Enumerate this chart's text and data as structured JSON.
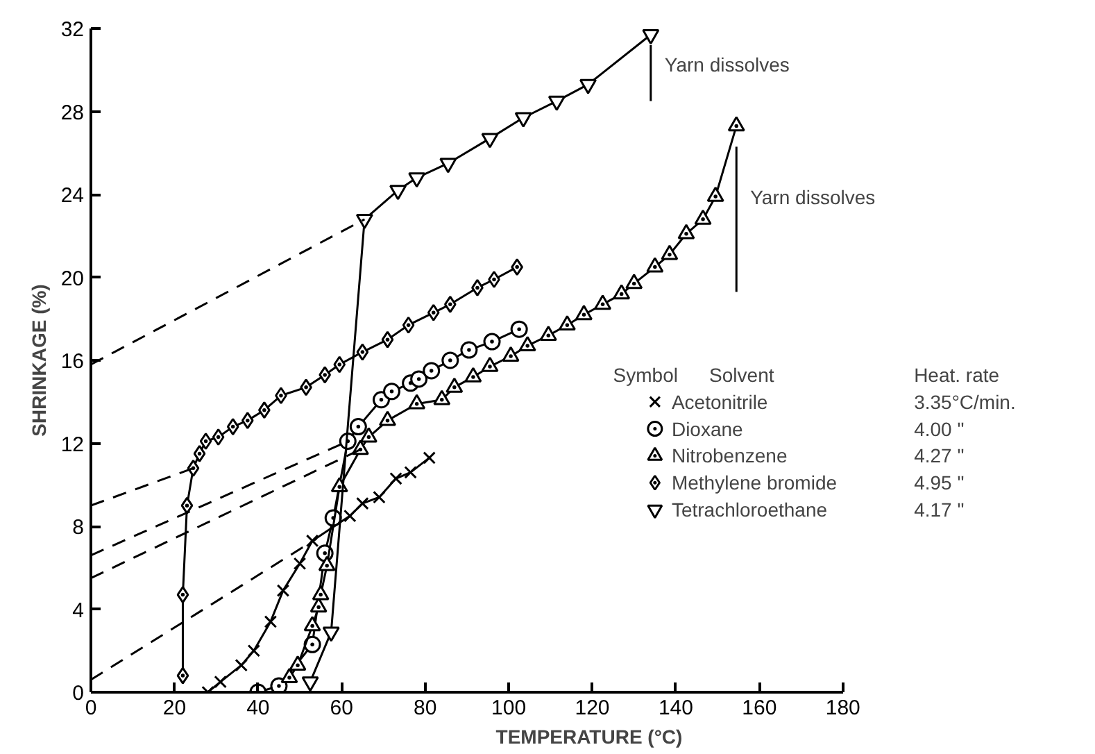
{
  "chart_data": {
    "type": "line",
    "xlabel": "TEMPERATURE (°C)",
    "ylabel": "SHRINKAGE (%)",
    "xlim": [
      0,
      180
    ],
    "xticks": [
      0,
      20,
      40,
      60,
      80,
      100,
      120,
      140,
      160,
      180
    ],
    "ylim": [
      0,
      32
    ],
    "yticks": [
      0,
      4,
      8,
      12,
      16,
      20,
      24,
      28,
      32
    ],
    "grid": false,
    "legend": "right",
    "series": [
      {
        "name": "Acetonitrile",
        "color": "#000000",
        "marker": "cross",
        "line_style": "solid",
        "x": [
          28,
          31,
          36,
          39,
          43,
          46,
          50,
          53,
          62,
          65,
          69,
          73,
          76.5,
          81
        ],
        "values": [
          0,
          0.5,
          1.3,
          2,
          3.4,
          4.9,
          6.2,
          7.3,
          8.5,
          9.1,
          9.4,
          10.3,
          10.6,
          11.3
        ]
      },
      {
        "name": "Dioxane",
        "color": "#000000",
        "marker": "circle",
        "line_style": "solid",
        "x": [
          40,
          45,
          53,
          56,
          58,
          61.5,
          64,
          69.5,
          72,
          76.5,
          78.5,
          81.5,
          86,
          90.5,
          96,
          102.5
        ],
        "values": [
          0,
          0.3,
          2.3,
          6.7,
          8.4,
          12.1,
          12.8,
          14.1,
          14.5,
          14.9,
          15.1,
          15.5,
          16,
          16.5,
          16.9,
          17.5
        ]
      },
      {
        "name": "Nitrobenzene",
        "color": "#000000",
        "marker": "triangle",
        "line_style": "solid",
        "x": [
          47.5,
          49.5,
          53,
          54.5,
          55,
          56.5,
          59.5,
          64.5,
          66.5,
          71,
          78,
          84,
          87,
          91.5,
          95.5,
          100.5,
          104.5,
          109.5,
          114,
          118,
          122.5,
          127,
          130,
          135,
          138.5,
          142.5,
          146.5,
          149.5,
          154.5
        ],
        "values": [
          0.7,
          1.3,
          3.2,
          4.1,
          4.7,
          6.1,
          9.9,
          11.7,
          12.3,
          13.1,
          13.9,
          14.1,
          14.7,
          15.2,
          15.7,
          16.2,
          16.7,
          17.2,
          17.7,
          18.2,
          18.7,
          19.2,
          19.7,
          20.5,
          21.1,
          22.1,
          22.8,
          23.9,
          27.3
        ]
      },
      {
        "name": "Methylene bromide",
        "color": "#000000",
        "marker": "diamond",
        "line_style": "solid",
        "x": [
          22,
          22,
          23,
          24.5,
          26,
          27.5,
          30.5,
          34,
          37.5,
          41.5,
          45.5,
          51.5,
          56,
          59.5,
          65,
          71,
          76,
          82,
          86,
          92.5,
          96.5,
          102
        ],
        "values": [
          0.8,
          4.7,
          9,
          10.8,
          11.5,
          12.1,
          12.3,
          12.8,
          13.1,
          13.6,
          14.3,
          14.7,
          15.3,
          15.8,
          16.4,
          17,
          17.7,
          18.3,
          18.7,
          19.5,
          19.9,
          20.5
        ]
      },
      {
        "name": "Tetrachloroethane",
        "color": "#000000",
        "marker": "triangle_down",
        "line_style": "solid",
        "x": [
          52.5,
          57.5,
          65.5,
          73.5,
          78,
          85.5,
          95.5,
          103.5,
          111.5,
          119,
          134
        ],
        "values": [
          0.5,
          2.9,
          22.8,
          24.2,
          24.8,
          25.5,
          26.7,
          27.7,
          28.5,
          29.3,
          31.7
        ]
      },
      {
        "color": "#000000",
        "marker": "none",
        "line_style": "dashed",
        "x": [
          0,
          54
        ],
        "values": [
          0.6,
          7.4
        ]
      },
      {
        "color": "#000000",
        "marker": "none",
        "line_style": "dashed",
        "x": [
          0,
          61.5
        ],
        "values": [
          6.6,
          12.1
        ]
      },
      {
        "color": "#000000",
        "marker": "none",
        "line_style": "dashed",
        "x": [
          0,
          64.5
        ],
        "values": [
          5.5,
          11.7
        ]
      },
      {
        "color": "#000000",
        "marker": "none",
        "line_style": "dashed",
        "x": [
          0,
          24.5
        ],
        "values": [
          9,
          10.8
        ]
      },
      {
        "color": "#000000",
        "marker": "none",
        "line_style": "dashed",
        "x": [
          0,
          65.5
        ],
        "values": [
          15.8,
          22.8
        ]
      },
      {
        "color": "#000000",
        "marker": "none",
        "line_style": "solid",
        "x": [
          134,
          134
        ],
        "values": [
          28.5,
          31.2
        ]
      },
      {
        "color": "#000000",
        "marker": "none",
        "line_style": "solid",
        "x": [
          154.5,
          154.5
        ],
        "values": [
          19.3,
          26.3
        ]
      }
    ],
    "annotations": [
      "Yarn dissolves",
      "Yarn dissolves",
      "Symbol",
      "Solvent",
      "Heat. rate",
      "3.35°C/min.",
      "4.00     \"",
      "4.27     \"",
      "4.95     \"",
      "4.17     \""
    ]
  }
}
